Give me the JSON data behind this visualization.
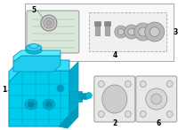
{
  "bg_color": "#ffffff",
  "outer_bg": "#ffffff",
  "main_color": "#00ccee",
  "main_edge": "#0099bb",
  "main_dark": "#0088aa",
  "inset_bg": "#f8f8f8",
  "inset_edge": "#aaaaaa",
  "part_bg": "#e8e8e8",
  "part_edge": "#999999",
  "label_fontsize": 5.5,
  "lc": "#888888"
}
